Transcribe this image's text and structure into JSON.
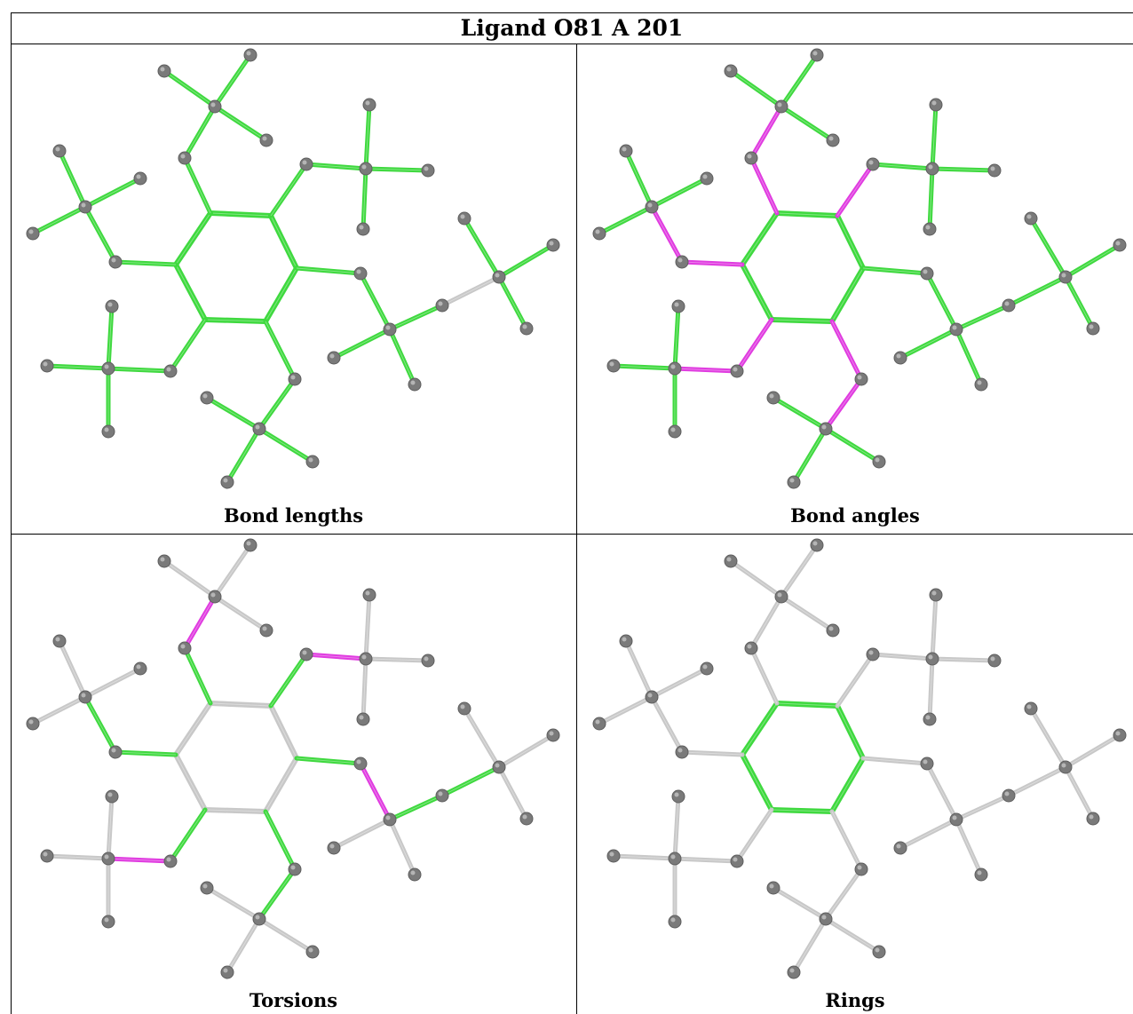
{
  "title": "Ligand O81 A 201",
  "colors": {
    "ok": "#3fd93f",
    "outlier": "#e03ce0",
    "neutral": "#c8c8c8",
    "atom": "#7a7a7a"
  },
  "panels": [
    {
      "caption": "Bond lengths",
      "mode": "lengths"
    },
    {
      "caption": "Bond angles",
      "mode": "angles"
    },
    {
      "caption": "Torsions",
      "mode": "torsions"
    },
    {
      "caption": "Rings",
      "mode": "rings"
    }
  ]
}
